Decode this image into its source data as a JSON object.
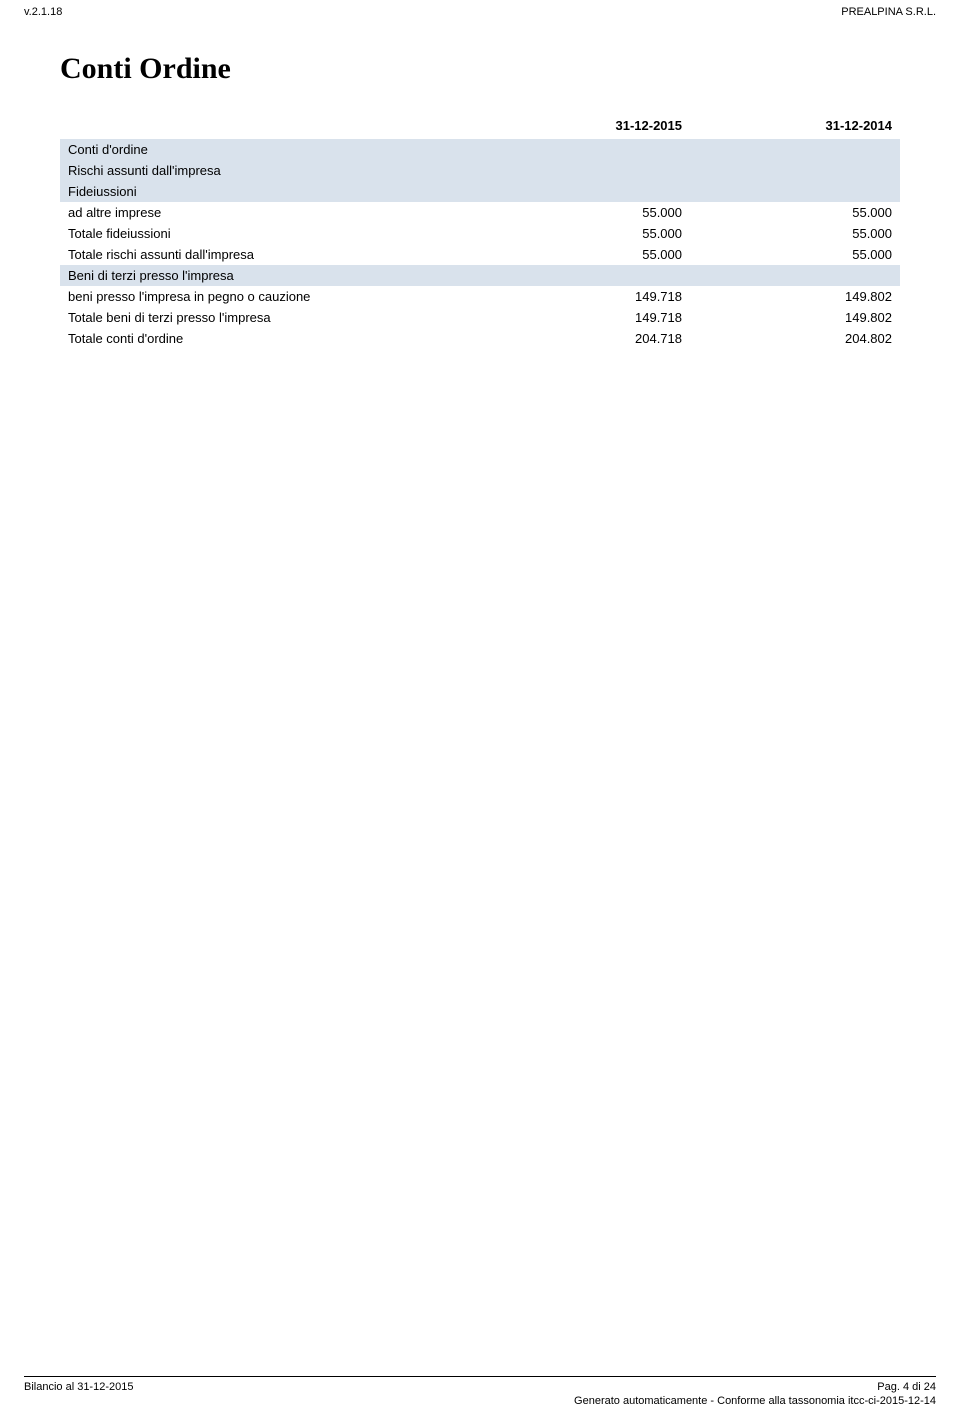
{
  "header": {
    "version": "v.2.1.18",
    "company": "PREALPINA S.R.L."
  },
  "title": "Conti Ordine",
  "table": {
    "columns": [
      "31-12-2015",
      "31-12-2014"
    ],
    "band_color": "#d9e2ec",
    "font_size": 13,
    "rows": [
      {
        "label": "Conti d'ordine",
        "indent": 0,
        "band": true,
        "values": [
          "",
          ""
        ]
      },
      {
        "label": "Rischi assunti dall'impresa",
        "indent": 1,
        "band": true,
        "values": [
          "",
          ""
        ]
      },
      {
        "label": "Fideiussioni",
        "indent": 2,
        "band": true,
        "values": [
          "",
          ""
        ]
      },
      {
        "label": "ad altre imprese",
        "indent": 3,
        "band": false,
        "values": [
          "55.000",
          "55.000"
        ]
      },
      {
        "label": "Totale fideiussioni",
        "indent": 2,
        "band": false,
        "values": [
          "55.000",
          "55.000"
        ]
      },
      {
        "label": "Totale rischi assunti dall'impresa",
        "indent": 1,
        "band": false,
        "values": [
          "55.000",
          "55.000"
        ]
      },
      {
        "label": "Beni di terzi presso l'impresa",
        "indent": 1,
        "band": true,
        "values": [
          "",
          ""
        ]
      },
      {
        "label": "beni presso l'impresa in pegno o cauzione",
        "indent": 2,
        "band": false,
        "values": [
          "149.718",
          "149.802"
        ]
      },
      {
        "label": "Totale beni di terzi presso l'impresa",
        "indent": 1,
        "band": false,
        "values": [
          "149.718",
          "149.802"
        ]
      },
      {
        "label": "Totale conti d'ordine",
        "indent": 0,
        "band": false,
        "values": [
          "204.718",
          "204.802"
        ]
      }
    ]
  },
  "footer": {
    "left": "Bilancio al 31-12-2015",
    "right": "Pag. 4 di 24",
    "line2": "Generato automaticamente - Conforme alla tassonomia itcc-ci-2015-12-14"
  }
}
